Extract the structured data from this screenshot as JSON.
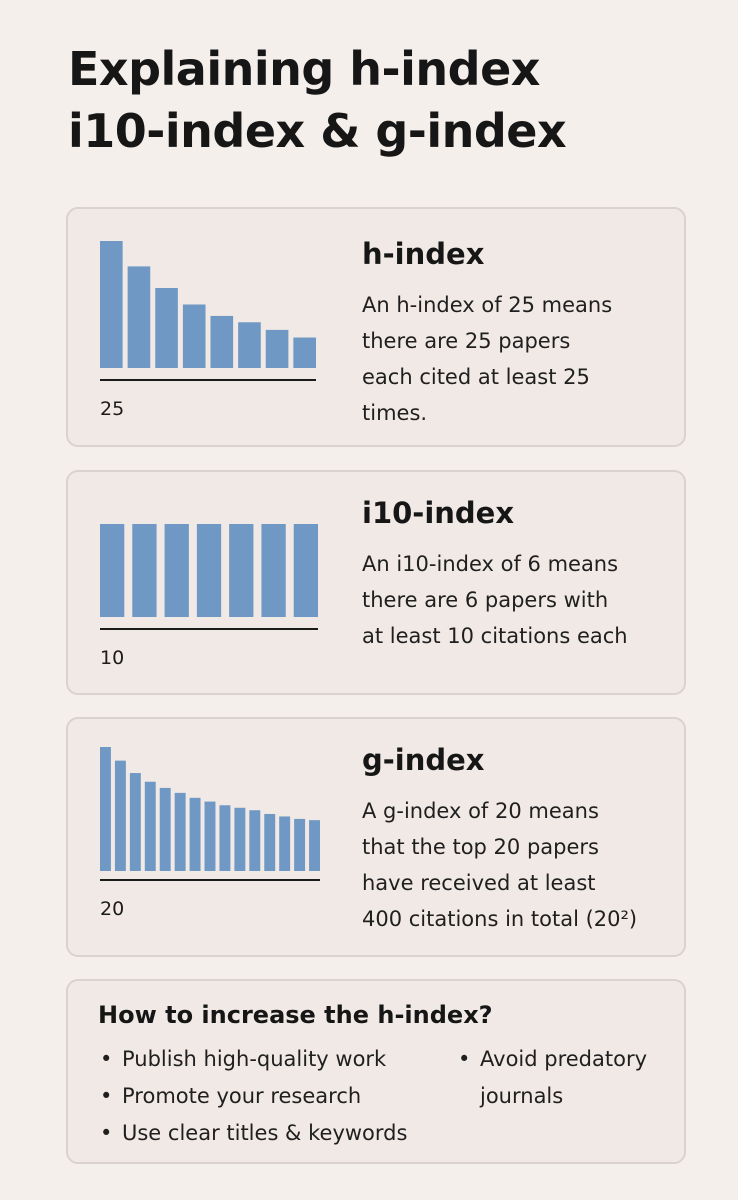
{
  "title": {
    "line1": "Explaining h-index",
    "line2": "i10-index & g-index"
  },
  "cards": [
    {
      "heading": "h-index",
      "desc_lines": [
        "An h-index of 25 means",
        "there are 25 papers",
        "each cited at least 25",
        "times."
      ],
      "axis_label": "25"
    },
    {
      "heading": "i10-index",
      "desc_lines": [
        "An i10-index of 6 means",
        "there are 6 papers with",
        "at least 10 citations each"
      ],
      "axis_label": "10"
    },
    {
      "heading": "g-index",
      "desc_lines": [
        "A g-index of 20 means",
        "that the top 20 papers",
        "have received at least",
        "400 citations in total (20²)"
      ],
      "axis_label": "20"
    }
  ],
  "tips": {
    "heading": "How to increase the h-index?",
    "left_items": [
      "Publish high-quality work",
      "Promote your research",
      "Use clear titles & keywords"
    ],
    "right_item_lines": [
      "Avoid predatory",
      "journals"
    ]
  },
  "chart_data": [
    {
      "type": "bar",
      "values": [
        100,
        80,
        63,
        50,
        41,
        36,
        30,
        24
      ],
      "axis_label": "25",
      "color": "#6f98c4"
    },
    {
      "type": "bar",
      "values": [
        100,
        100,
        100,
        100,
        100,
        100,
        100
      ],
      "axis_label": "10",
      "color": "#6f98c4"
    },
    {
      "type": "bar",
      "values": [
        100,
        89,
        79,
        72,
        67,
        63,
        59,
        56,
        53,
        51,
        49,
        46,
        44,
        42,
        41
      ],
      "axis_label": "20",
      "color": "#6f98c4"
    }
  ]
}
